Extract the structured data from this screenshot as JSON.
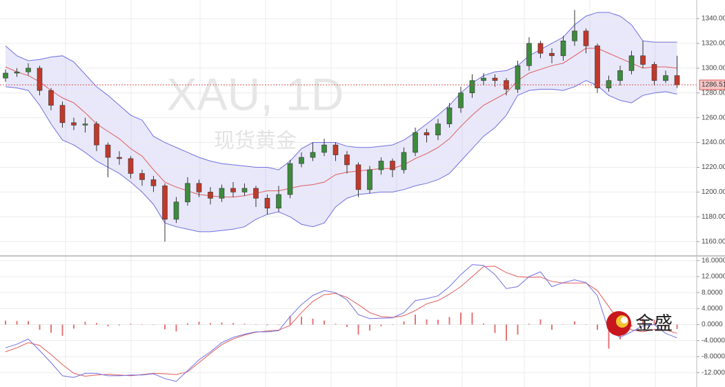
{
  "logo": "金盛",
  "chart_data": [
    {
      "type": "candlestick",
      "title": "XAU, 1D",
      "subtitle": "现货黄金",
      "up_color": "#3d8b3d",
      "down_color": "#c0392b",
      "open": [
        1292,
        1296,
        1297,
        1300,
        1282,
        1270,
        1256,
        1254,
        1255,
        1238,
        1228,
        1227,
        1215,
        1210,
        1205,
        1178,
        1192,
        1207,
        1200,
        1195,
        1203,
        1200,
        1203,
        1195,
        1187,
        1198,
        1223,
        1228,
        1232,
        1238,
        1230,
        1222,
        1202,
        1218,
        1225,
        1218,
        1232,
        1248,
        1246,
        1255,
        1268,
        1280,
        1290,
        1292,
        1290,
        1283,
        1302,
        1320,
        1312,
        1310,
        1322,
        1330,
        1318,
        1284,
        1290,
        1298,
        1310,
        1303,
        1290,
        1294
      ],
      "high": [
        1299,
        1300,
        1304,
        1302,
        1284,
        1273,
        1260,
        1260,
        1257,
        1240,
        1233,
        1229,
        1218,
        1213,
        1207,
        1196,
        1212,
        1210,
        1204,
        1206,
        1208,
        1207,
        1205,
        1198,
        1205,
        1226,
        1232,
        1240,
        1243,
        1240,
        1233,
        1224,
        1221,
        1228,
        1227,
        1236,
        1252,
        1251,
        1259,
        1272,
        1285,
        1295,
        1296,
        1295,
        1292,
        1306,
        1325,
        1322,
        1316,
        1326,
        1347,
        1332,
        1320,
        1294,
        1302,
        1314,
        1322,
        1305,
        1298,
        1310
      ],
      "low": [
        1289,
        1293,
        1294,
        1278,
        1266,
        1252,
        1250,
        1248,
        1233,
        1212,
        1222,
        1211,
        1205,
        1200,
        1160,
        1175,
        1189,
        1196,
        1190,
        1192,
        1196,
        1197,
        1188,
        1182,
        1184,
        1195,
        1220,
        1225,
        1229,
        1225,
        1215,
        1196,
        1199,
        1214,
        1212,
        1215,
        1229,
        1240,
        1242,
        1252,
        1264,
        1276,
        1286,
        1285,
        1278,
        1280,
        1298,
        1308,
        1304,
        1306,
        1318,
        1312,
        1280,
        1281,
        1286,
        1295,
        1300,
        1286,
        1288,
        1284
      ],
      "close": [
        1296,
        1297,
        1300,
        1282,
        1270,
        1256,
        1254,
        1255,
        1238,
        1228,
        1227,
        1215,
        1210,
        1205,
        1178,
        1192,
        1207,
        1200,
        1195,
        1203,
        1200,
        1203,
        1195,
        1187,
        1198,
        1223,
        1228,
        1232,
        1238,
        1230,
        1222,
        1202,
        1218,
        1225,
        1218,
        1232,
        1248,
        1246,
        1255,
        1268,
        1280,
        1290,
        1292,
        1290,
        1283,
        1302,
        1320,
        1312,
        1310,
        1322,
        1330,
        1318,
        1284,
        1290,
        1298,
        1310,
        1303,
        1290,
        1294,
        1286.51
      ],
      "bands": {
        "band_color": "#6f6fe0",
        "mid_color": "#e05a5a",
        "upper": [
          1318,
          1310,
          1306,
          1307,
          1309,
          1310,
          1305,
          1295,
          1285,
          1278,
          1270,
          1262,
          1258,
          1245,
          1240,
          1236,
          1232,
          1228,
          1225,
          1223,
          1222,
          1221,
          1220,
          1220,
          1218,
          1225,
          1235,
          1240,
          1240,
          1240,
          1237,
          1236,
          1236,
          1237,
          1238,
          1242,
          1248,
          1255,
          1262,
          1270,
          1280,
          1288,
          1294,
          1297,
          1298,
          1302,
          1310,
          1315,
          1320,
          1325,
          1335,
          1342,
          1345,
          1345,
          1342,
          1335,
          1322,
          1321,
          1321,
          1321
        ],
        "middle": [
          1301,
          1297,
          1294,
          1289,
          1282,
          1276,
          1272,
          1264,
          1255,
          1249,
          1243,
          1235,
          1229,
          1218,
          1208,
          1204,
          1201,
          1198,
          1197,
          1196,
          1196,
          1197,
          1199,
          1201,
          1201,
          1203,
          1205,
          1206,
          1208,
          1214,
          1216,
          1217,
          1218,
          1219,
          1219,
          1222,
          1227,
          1231,
          1236,
          1243,
          1253,
          1262,
          1270,
          1275,
          1280,
          1290,
          1296,
          1299,
          1302,
          1304,
          1310,
          1316,
          1316,
          1312,
          1308,
          1304,
          1300,
          1301,
          1301,
          1300
        ],
        "lower": [
          1285,
          1284,
          1282,
          1270,
          1255,
          1242,
          1238,
          1232,
          1225,
          1220,
          1215,
          1208,
          1200,
          1190,
          1175,
          1172,
          1170,
          1168,
          1168,
          1169,
          1170,
          1172,
          1178,
          1182,
          1184,
          1180,
          1174,
          1172,
          1175,
          1188,
          1195,
          1198,
          1199,
          1200,
          1200,
          1202,
          1205,
          1207,
          1210,
          1215,
          1225,
          1235,
          1245,
          1252,
          1262,
          1278,
          1282,
          1283,
          1283,
          1282,
          1285,
          1290,
          1286,
          1278,
          1274,
          1272,
          1278,
          1280,
          1281,
          1279
        ]
      },
      "ylim": [
        1149,
        1355
      ],
      "yticks": [
        {
          "value": 1160,
          "label": "1160.00"
        },
        {
          "value": 1180,
          "label": "1180.00"
        },
        {
          "value": 1200,
          "label": "1200.00"
        },
        {
          "value": 1220,
          "label": "1220.00"
        },
        {
          "value": 1240,
          "label": "1240.00"
        },
        {
          "value": 1260,
          "label": "1260.00"
        },
        {
          "value": 1280,
          "label": "1280.00"
        },
        {
          "value": 1300,
          "label": "1300.00"
        },
        {
          "value": 1320,
          "label": "1320.00"
        },
        {
          "value": 1340,
          "label": "1340.00"
        }
      ],
      "grid": true
    },
    {
      "type": "macd",
      "macd": {
        "color": "#6f6fe0",
        "values": [
          -5.8,
          -4.9,
          -3.6,
          -6.5,
          -9.5,
          -12.8,
          -13.2,
          -12.2,
          -12.2,
          -12.8,
          -12.8,
          -12.6,
          -12.6,
          -12.3,
          -13.5,
          -14.2,
          -11.5,
          -8.8,
          -6.8,
          -4.5,
          -3.2,
          -2.4,
          -1.8,
          -1.8,
          -1.5,
          2.0,
          5.0,
          7.3,
          8.5,
          8.0,
          6.2,
          2.5,
          1.5,
          1.6,
          1.7,
          3.0,
          6.0,
          6.5,
          7.2,
          9.5,
          12.5,
          15.0,
          14.8,
          12.5,
          9.0,
          9.5,
          12.0,
          13.2,
          9.5,
          10.5,
          11.2,
          10.5,
          7.2,
          -1.5,
          -3.2,
          -1.8,
          -0.3,
          0.0,
          -2.2,
          -3.3
        ]
      },
      "signal": {
        "color": "#e05a5a",
        "values": [
          -6.8,
          -5.8,
          -4.5,
          -5.2,
          -7.5,
          -10.0,
          -12.2,
          -12.9,
          -12.6,
          -12.4,
          -12.6,
          -12.8,
          -12.5,
          -12.2,
          -12.3,
          -12.5,
          -11.8,
          -9.5,
          -7.2,
          -5.0,
          -3.6,
          -2.6,
          -1.9,
          -1.6,
          -1.4,
          -0.2,
          3.0,
          5.8,
          7.5,
          7.8,
          6.8,
          5.0,
          3.0,
          2.0,
          1.8,
          2.2,
          3.5,
          5.2,
          6.0,
          7.6,
          9.5,
          12.0,
          14.5,
          14.6,
          13.0,
          12.0,
          11.8,
          11.9,
          10.8,
          10.4,
          10.4,
          10.4,
          8.5,
          4.5,
          0.5,
          -1.3,
          -1.8,
          -1.2,
          -1.3,
          -2.2
        ]
      },
      "histogram": {
        "color": "#e57373",
        "values": [
          1.0,
          0.9,
          0.9,
          -1.3,
          -2.0,
          -2.8,
          -1.0,
          0.7,
          0.4,
          -0.4,
          -0.2,
          0.2,
          -0.1,
          -0.1,
          -1.2,
          -1.7,
          0.3,
          0.7,
          0.4,
          0.5,
          0.4,
          0.2,
          0.1,
          -0.2,
          -0.1,
          2.2,
          2.0,
          1.5,
          1.0,
          0.2,
          -0.6,
          -2.5,
          -1.5,
          -0.4,
          -0.1,
          0.8,
          2.5,
          1.3,
          1.2,
          1.9,
          3.0,
          3.0,
          0.3,
          -2.1,
          -4.0,
          -2.5,
          0.2,
          1.3,
          -1.3,
          0.1,
          0.8,
          0.1,
          -1.3,
          -6.0,
          -3.7,
          -0.5,
          1.5,
          1.2,
          -0.9,
          -1.1
        ]
      },
      "ylim": [
        -15.6,
        17
      ],
      "yticks": [
        {
          "value": 16,
          "label": "16.0000"
        },
        {
          "value": 12,
          "label": "12.0000"
        },
        {
          "value": 8,
          "label": "8.0000"
        },
        {
          "value": 4,
          "label": "4.0000"
        },
        {
          "value": 0,
          "label": "0.0000"
        },
        {
          "value": -4,
          "label": "-4.0000"
        },
        {
          "value": -8,
          "label": "-8.0000"
        },
        {
          "value": -12,
          "label": "-12.0000"
        }
      ],
      "grid": true
    }
  ]
}
